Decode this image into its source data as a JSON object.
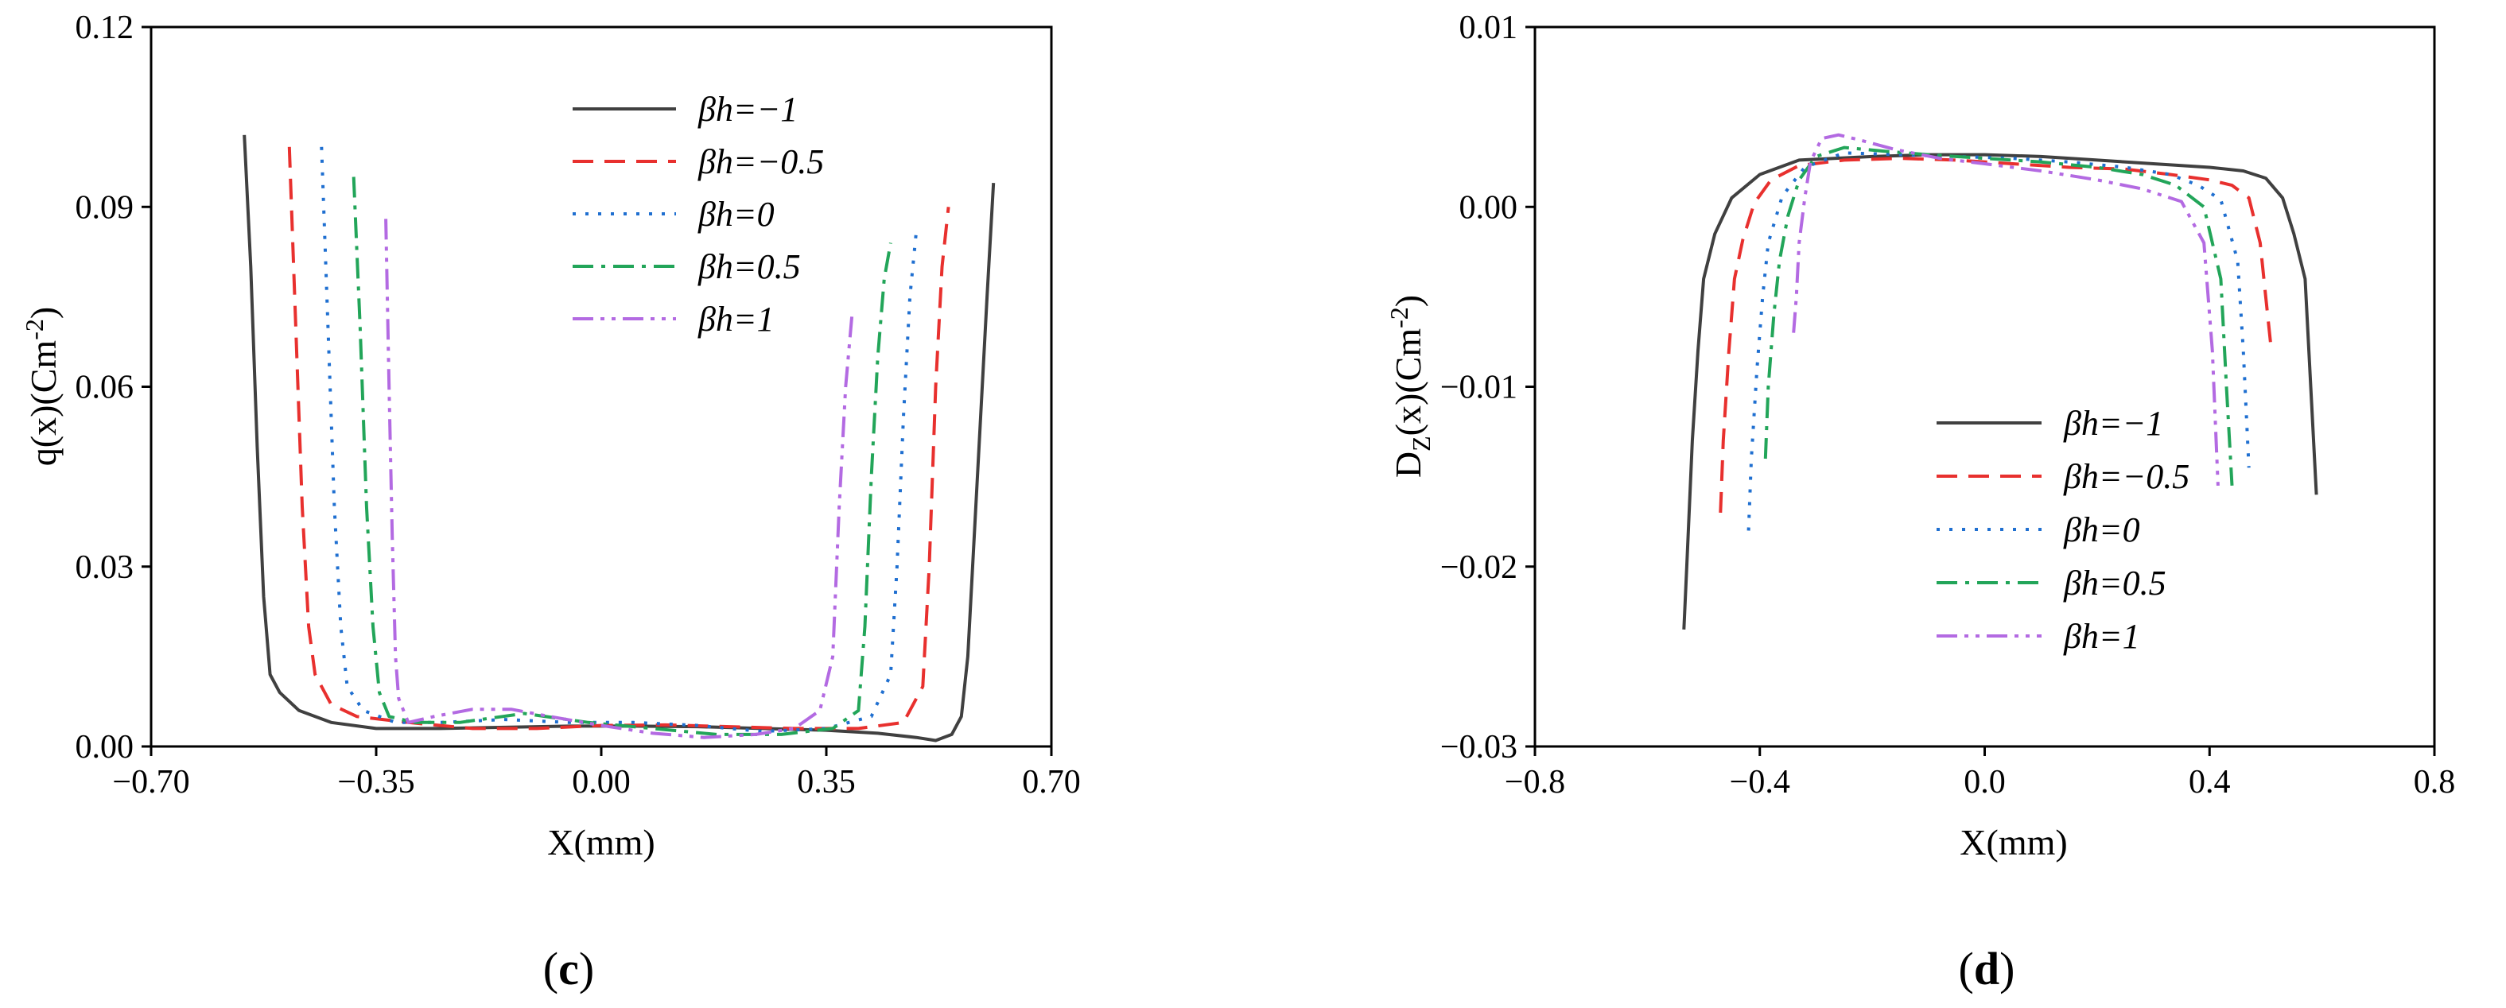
{
  "chart_data": [
    {
      "type": "line",
      "panel_label": "c",
      "xlabel": "X(mm)",
      "ylabel": "q(x)(Cm",
      "ylabel_sup": "-2",
      "ylabel_tail": ")",
      "xlim": [
        -0.7,
        0.7
      ],
      "ylim": [
        0,
        0.12
      ],
      "xticks": [
        -0.7,
        -0.35,
        0.0,
        0.35,
        0.7
      ],
      "xtick_labels": [
        "−0.70",
        "−0.35",
        "0.00",
        "0.35",
        "0.70"
      ],
      "yticks": [
        0,
        0.03,
        0.06,
        0.09,
        0.12
      ],
      "ytick_labels": [
        "0.00",
        "0.03",
        "0.06",
        "0.09",
        "0.12"
      ],
      "legend_position": "top-center",
      "series": [
        {
          "name": "βh=−1",
          "color": "#404040",
          "dash": "solid",
          "x": [
            -0.555,
            -0.545,
            -0.535,
            -0.525,
            -0.515,
            -0.5,
            -0.47,
            -0.42,
            -0.35,
            -0.25,
            -0.15,
            -0.05,
            0.05,
            0.15,
            0.25,
            0.35,
            0.43,
            0.49,
            0.52,
            0.545,
            0.56,
            0.57,
            0.585,
            0.6,
            0.61
          ],
          "y": [
            0.102,
            0.08,
            0.05,
            0.025,
            0.012,
            0.009,
            0.006,
            0.004,
            0.003,
            0.003,
            0.0032,
            0.0034,
            0.0034,
            0.0033,
            0.003,
            0.0027,
            0.0022,
            0.0015,
            0.001,
            0.002,
            0.005,
            0.015,
            0.045,
            0.075,
            0.094
          ]
        },
        {
          "name": "βh=−0.5",
          "color": "#e8302e",
          "dash": "dashed",
          "x": [
            -0.485,
            -0.475,
            -0.465,
            -0.455,
            -0.445,
            -0.42,
            -0.38,
            -0.3,
            -0.2,
            -0.1,
            0.0,
            0.1,
            0.2,
            0.3,
            0.4,
            0.47,
            0.5,
            0.51,
            0.52,
            0.53,
            0.54
          ],
          "y": [
            0.1,
            0.07,
            0.04,
            0.02,
            0.012,
            0.007,
            0.005,
            0.004,
            0.003,
            0.003,
            0.0035,
            0.0036,
            0.0033,
            0.003,
            0.003,
            0.004,
            0.01,
            0.03,
            0.06,
            0.08,
            0.09
          ]
        },
        {
          "name": "βh=0",
          "color": "#1f6fd0",
          "dash": "dotted",
          "x": [
            -0.435,
            -0.425,
            -0.415,
            -0.405,
            -0.395,
            -0.37,
            -0.32,
            -0.25,
            -0.15,
            -0.05,
            0.05,
            0.15,
            0.25,
            0.35,
            0.42,
            0.45,
            0.46,
            0.47,
            0.48,
            0.49
          ],
          "y": [
            0.1,
            0.07,
            0.04,
            0.02,
            0.01,
            0.006,
            0.004,
            0.004,
            0.0045,
            0.004,
            0.004,
            0.0035,
            0.0025,
            0.003,
            0.005,
            0.012,
            0.03,
            0.055,
            0.075,
            0.086
          ]
        },
        {
          "name": "βh=0.5",
          "color": "#22a559",
          "dash": "dashdot",
          "x": [
            -0.385,
            -0.375,
            -0.365,
            -0.355,
            -0.345,
            -0.33,
            -0.29,
            -0.22,
            -0.12,
            -0.02,
            0.08,
            0.18,
            0.28,
            0.36,
            0.4,
            0.41,
            0.42,
            0.43,
            0.44,
            0.45
          ],
          "y": [
            0.095,
            0.07,
            0.04,
            0.02,
            0.009,
            0.005,
            0.004,
            0.004,
            0.0055,
            0.004,
            0.003,
            0.002,
            0.002,
            0.003,
            0.006,
            0.02,
            0.045,
            0.065,
            0.078,
            0.084
          ]
        },
        {
          "name": "βh=1",
          "color": "#b36ae2",
          "dash": "dashdotdot",
          "x": [
            -0.335,
            -0.33,
            -0.325,
            -0.32,
            -0.315,
            -0.3,
            -0.26,
            -0.2,
            -0.14,
            -0.08,
            0.0,
            0.08,
            0.16,
            0.24,
            0.3,
            0.34,
            0.36,
            0.37,
            0.38,
            0.39
          ],
          "y": [
            0.088,
            0.06,
            0.035,
            0.015,
            0.008,
            0.004,
            0.005,
            0.0062,
            0.0062,
            0.005,
            0.0035,
            0.0022,
            0.0015,
            0.002,
            0.003,
            0.006,
            0.015,
            0.04,
            0.06,
            0.072
          ]
        }
      ]
    },
    {
      "type": "line",
      "panel_label": "d",
      "xlabel": "X(mm)",
      "ylabel": "D",
      "ylabel_sub": "Z",
      "ylabel_mid": "(x)(Cm",
      "ylabel_sup": "-2",
      "ylabel_tail": ")",
      "xlim": [
        -0.8,
        0.8
      ],
      "ylim": [
        -0.03,
        0.01
      ],
      "xticks": [
        -0.8,
        -0.4,
        0.0,
        0.4,
        0.8
      ],
      "xtick_labels": [
        "−0.8",
        "−0.4",
        "0.0",
        "0.4",
        "0.8"
      ],
      "yticks": [
        -0.03,
        -0.02,
        -0.01,
        0.0,
        0.01
      ],
      "ytick_labels": [
        "−0.03",
        "−0.02",
        "−0.01",
        "0.00",
        "0.01"
      ],
      "legend_position": "bottom-center",
      "series": [
        {
          "name": "βh=−1",
          "color": "#404040",
          "dash": "solid",
          "x": [
            -0.535,
            -0.53,
            -0.52,
            -0.51,
            -0.5,
            -0.48,
            -0.45,
            -0.4,
            -0.33,
            -0.2,
            -0.1,
            0.0,
            0.1,
            0.2,
            0.3,
            0.4,
            0.46,
            0.5,
            0.53,
            0.55,
            0.57,
            0.58,
            0.59
          ],
          "y": [
            -0.0235,
            -0.02,
            -0.013,
            -0.008,
            -0.004,
            -0.0015,
            0.0005,
            0.0018,
            0.0026,
            0.0028,
            0.0029,
            0.0029,
            0.0028,
            0.0026,
            0.0024,
            0.0022,
            0.002,
            0.0016,
            0.0005,
            -0.0015,
            -0.004,
            -0.01,
            -0.016
          ]
        },
        {
          "name": "βh=−0.5",
          "color": "#e8302e",
          "dash": "dashed",
          "x": [
            -0.47,
            -0.465,
            -0.455,
            -0.445,
            -0.43,
            -0.41,
            -0.38,
            -0.33,
            -0.25,
            -0.15,
            -0.05,
            0.05,
            0.15,
            0.25,
            0.33,
            0.4,
            0.44,
            0.47,
            0.49,
            0.5,
            0.51
          ],
          "y": [
            -0.017,
            -0.013,
            -0.008,
            -0.004,
            -0.0018,
            0.0002,
            0.0015,
            0.0023,
            0.0026,
            0.0027,
            0.0026,
            0.0024,
            0.0022,
            0.0021,
            0.0018,
            0.0015,
            0.0012,
            0.0005,
            -0.002,
            -0.005,
            -0.008
          ]
        },
        {
          "name": "βh=0",
          "color": "#1f6fd0",
          "dash": "dotted",
          "x": [
            -0.42,
            -0.415,
            -0.405,
            -0.395,
            -0.385,
            -0.36,
            -0.32,
            -0.25,
            -0.15,
            -0.05,
            0.05,
            0.15,
            0.25,
            0.33,
            0.38,
            0.42,
            0.45,
            0.46,
            0.47
          ],
          "y": [
            -0.018,
            -0.014,
            -0.009,
            -0.005,
            -0.002,
            0.0006,
            0.0022,
            0.003,
            0.0029,
            0.0028,
            0.0027,
            0.0025,
            0.0022,
            0.0018,
            0.0012,
            0.0004,
            -0.003,
            -0.008,
            -0.0145
          ]
        },
        {
          "name": "βh=0.5",
          "color": "#22a559",
          "dash": "dashdot",
          "x": [
            -0.39,
            -0.385,
            -0.375,
            -0.365,
            -0.35,
            -0.33,
            -0.3,
            -0.25,
            -0.18,
            -0.1,
            0.0,
            0.1,
            0.2,
            0.28,
            0.34,
            0.39,
            0.42,
            0.43,
            0.44
          ],
          "y": [
            -0.014,
            -0.01,
            -0.006,
            -0.003,
            -0.0005,
            0.0015,
            0.0028,
            0.0033,
            0.0031,
            0.0029,
            0.0027,
            0.0025,
            0.0022,
            0.0018,
            0.0012,
            0.0,
            -0.004,
            -0.01,
            -0.0155
          ]
        },
        {
          "name": "βh=1",
          "color": "#b36ae2",
          "dash": "dashdotdot",
          "x": [
            -0.34,
            -0.335,
            -0.33,
            -0.32,
            -0.31,
            -0.29,
            -0.26,
            -0.22,
            -0.16,
            -0.08,
            0.0,
            0.1,
            0.2,
            0.28,
            0.35,
            0.39,
            0.405,
            0.415
          ],
          "y": [
            -0.007,
            -0.005,
            -0.002,
            0.0005,
            0.0025,
            0.0038,
            0.004,
            0.0037,
            0.0032,
            0.0027,
            0.0024,
            0.002,
            0.0015,
            0.001,
            0.0003,
            -0.002,
            -0.008,
            -0.0155
          ]
        }
      ]
    }
  ]
}
